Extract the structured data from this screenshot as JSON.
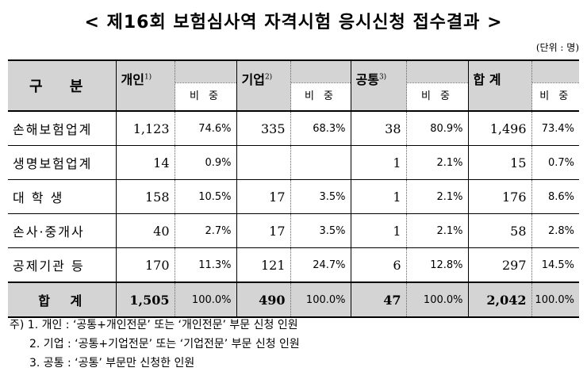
{
  "title": "< 제16회 보험심사역 자격시험 응시신청 접수결과 >",
  "unit": "(단위 : 명)",
  "header": {
    "gubun": "구  분",
    "groups": [
      {
        "label": "개인",
        "sup": "1)"
      },
      {
        "label": "기업",
        "sup": "2)"
      },
      {
        "label": "공통",
        "sup": "3)"
      },
      {
        "label": "합  계",
        "sup": ""
      }
    ],
    "ratio_label": "비 중"
  },
  "rows": [
    {
      "label": "손해보험업계",
      "values": [
        "1,123",
        "74.6%",
        "335",
        "68.3%",
        "38",
        "80.9%",
        "1,496",
        "73.4%"
      ]
    },
    {
      "label": "생명보험업계",
      "values": [
        "14",
        "0.9%",
        "",
        "",
        "1",
        "2.1%",
        "15",
        "0.7%"
      ]
    },
    {
      "label": "대  학  생",
      "values": [
        "158",
        "10.5%",
        "17",
        "3.5%",
        "1",
        "2.1%",
        "176",
        "8.6%"
      ]
    },
    {
      "label": "손사·중개사",
      "values": [
        "40",
        "2.7%",
        "17",
        "3.5%",
        "1",
        "2.1%",
        "58",
        "2.8%"
      ]
    },
    {
      "label": "공제기관 등",
      "values": [
        "170",
        "11.3%",
        "121",
        "24.7%",
        "6",
        "12.8%",
        "297",
        "14.5%"
      ]
    }
  ],
  "total": {
    "label": "합  계",
    "values": [
      "1,505",
      "100.0%",
      "490",
      "100.0%",
      "47",
      "100.0%",
      "2,042",
      "100.0%"
    ]
  },
  "notes": [
    "주) 1. 개인 : ‘공통+개인전문’ 또는 ‘개인전문’ 부문 신청 인원",
    "2. 기업 : ‘공통+기업전문’ 또는 ‘기업전문’ 부문 신청 인원",
    "3. 공통 : ‘공통’ 부문만 신청한 인원"
  ]
}
